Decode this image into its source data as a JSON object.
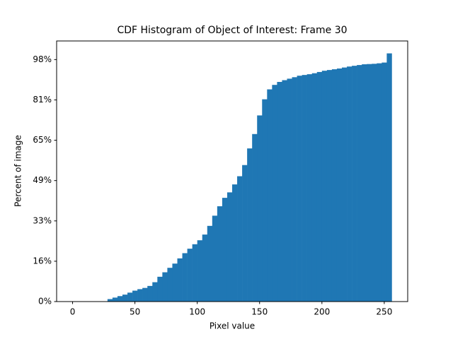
{
  "chart_data": {
    "type": "histogram",
    "title": "CDF Histogram of Object of Interest: Frame 30",
    "x_label": "Pixel value",
    "y_label": "Percent of image",
    "color": "#1f77b4",
    "bins": [
      0,
      4,
      8,
      12,
      16,
      20,
      24,
      28,
      32,
      36,
      40,
      44,
      48,
      52,
      56,
      60,
      64,
      68,
      72,
      76,
      80,
      84,
      88,
      92,
      96,
      100,
      104,
      108,
      112,
      116,
      120,
      124,
      128,
      132,
      136,
      140,
      144,
      148,
      152,
      156,
      160,
      164,
      168,
      172,
      176,
      180,
      184,
      188,
      192,
      196,
      200,
      204,
      208,
      212,
      216,
      220,
      224,
      228,
      232,
      236,
      240,
      244,
      248,
      252,
      256
    ],
    "values": [
      0,
      0,
      0,
      0,
      0,
      0,
      0,
      1.0,
      1.6,
      2.2,
      2.8,
      3.6,
      4.4,
      5.0,
      5.5,
      6.3,
      7.8,
      10.0,
      11.8,
      13.6,
      15.3,
      17.4,
      19.5,
      21.3,
      23.1,
      24.7,
      27.0,
      30.5,
      34.6,
      38.4,
      41.8,
      44.0,
      47.2,
      50.5,
      55.0,
      61.7,
      67.5,
      75.0,
      81.5,
      85.5,
      87.3,
      88.5,
      89.2,
      89.8,
      90.4,
      91.0,
      91.3,
      91.6,
      92.0,
      92.5,
      93.0,
      93.3,
      93.6,
      93.9,
      94.3,
      94.7,
      95.0,
      95.3,
      95.6,
      95.7,
      95.8,
      96.0,
      96.3,
      100
    ],
    "xlim": [
      -12.8,
      268.8
    ],
    "ylim": [
      0,
      105
    ],
    "xticks": [
      0,
      50,
      100,
      150,
      200,
      250
    ],
    "yticks": [
      {
        "value": 0,
        "label": "0%"
      },
      {
        "value": 16.25,
        "label": "16%"
      },
      {
        "value": 32.5,
        "label": "33%"
      },
      {
        "value": 48.75,
        "label": "49%"
      },
      {
        "value": 65,
        "label": "65%"
      },
      {
        "value": 81.25,
        "label": "81%"
      },
      {
        "value": 97.5,
        "label": "98%"
      }
    ]
  }
}
